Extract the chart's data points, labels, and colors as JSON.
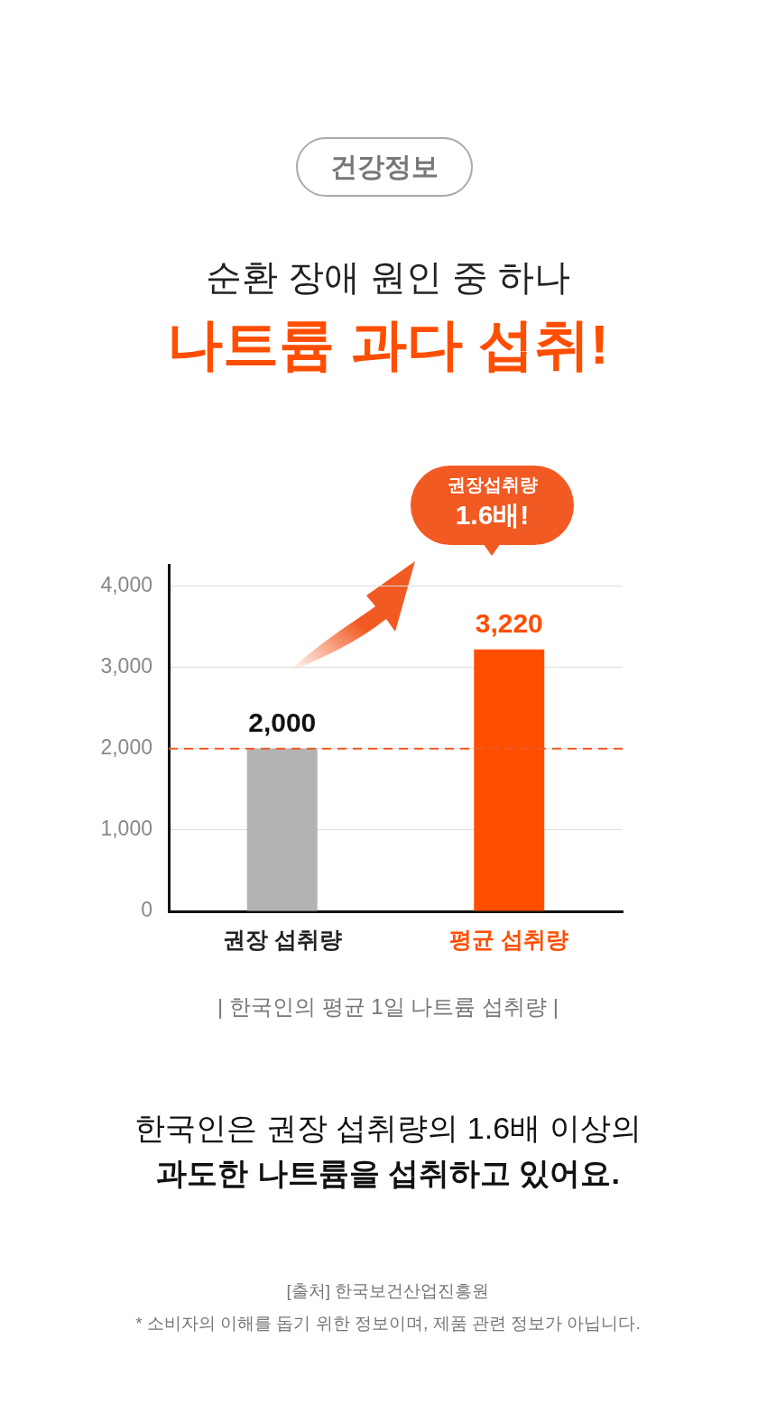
{
  "chart_data": {
    "type": "bar",
    "subtitle": "순환 장애 원인 중 하나",
    "title": "나트륨 과다 섭취!",
    "categories": [
      "권장 섭취량",
      "평균 섭취량"
    ],
    "values": [
      2000,
      3220
    ],
    "colors": [
      "#b3b3b3",
      "#ff4e00"
    ],
    "value_labels": [
      "2,000",
      "3,220"
    ],
    "xlabel": "| 한국인의 평균 1일 나트륨 섭취량 |",
    "ylim": [
      0,
      4250
    ],
    "yticks": [
      {
        "value": 0,
        "label": "0"
      },
      {
        "value": 1000,
        "label": "1,000"
      },
      {
        "value": 2000,
        "label": "2,000"
      },
      {
        "value": 3000,
        "label": "3,000"
      },
      {
        "value": 4000,
        "label": "4,000"
      }
    ],
    "grid": "y",
    "legend": false,
    "ref_lines": [
      {
        "axis": "y",
        "value": 2000,
        "color": "#f15a22",
        "line_style": "dashed"
      }
    ],
    "annotations": [
      "건강정보",
      "권장섭취량 1.6배!",
      "한국인은 권장 섭취량의 1.6배 이상의",
      "과도한 나트륨을 섭취하고 있어요.",
      "[출처] 한국보건산업진흥원",
      "* 소비자의 이해를 돕기 위한 정보이며, 제품 관련 정보가 아닙니다."
    ]
  }
}
